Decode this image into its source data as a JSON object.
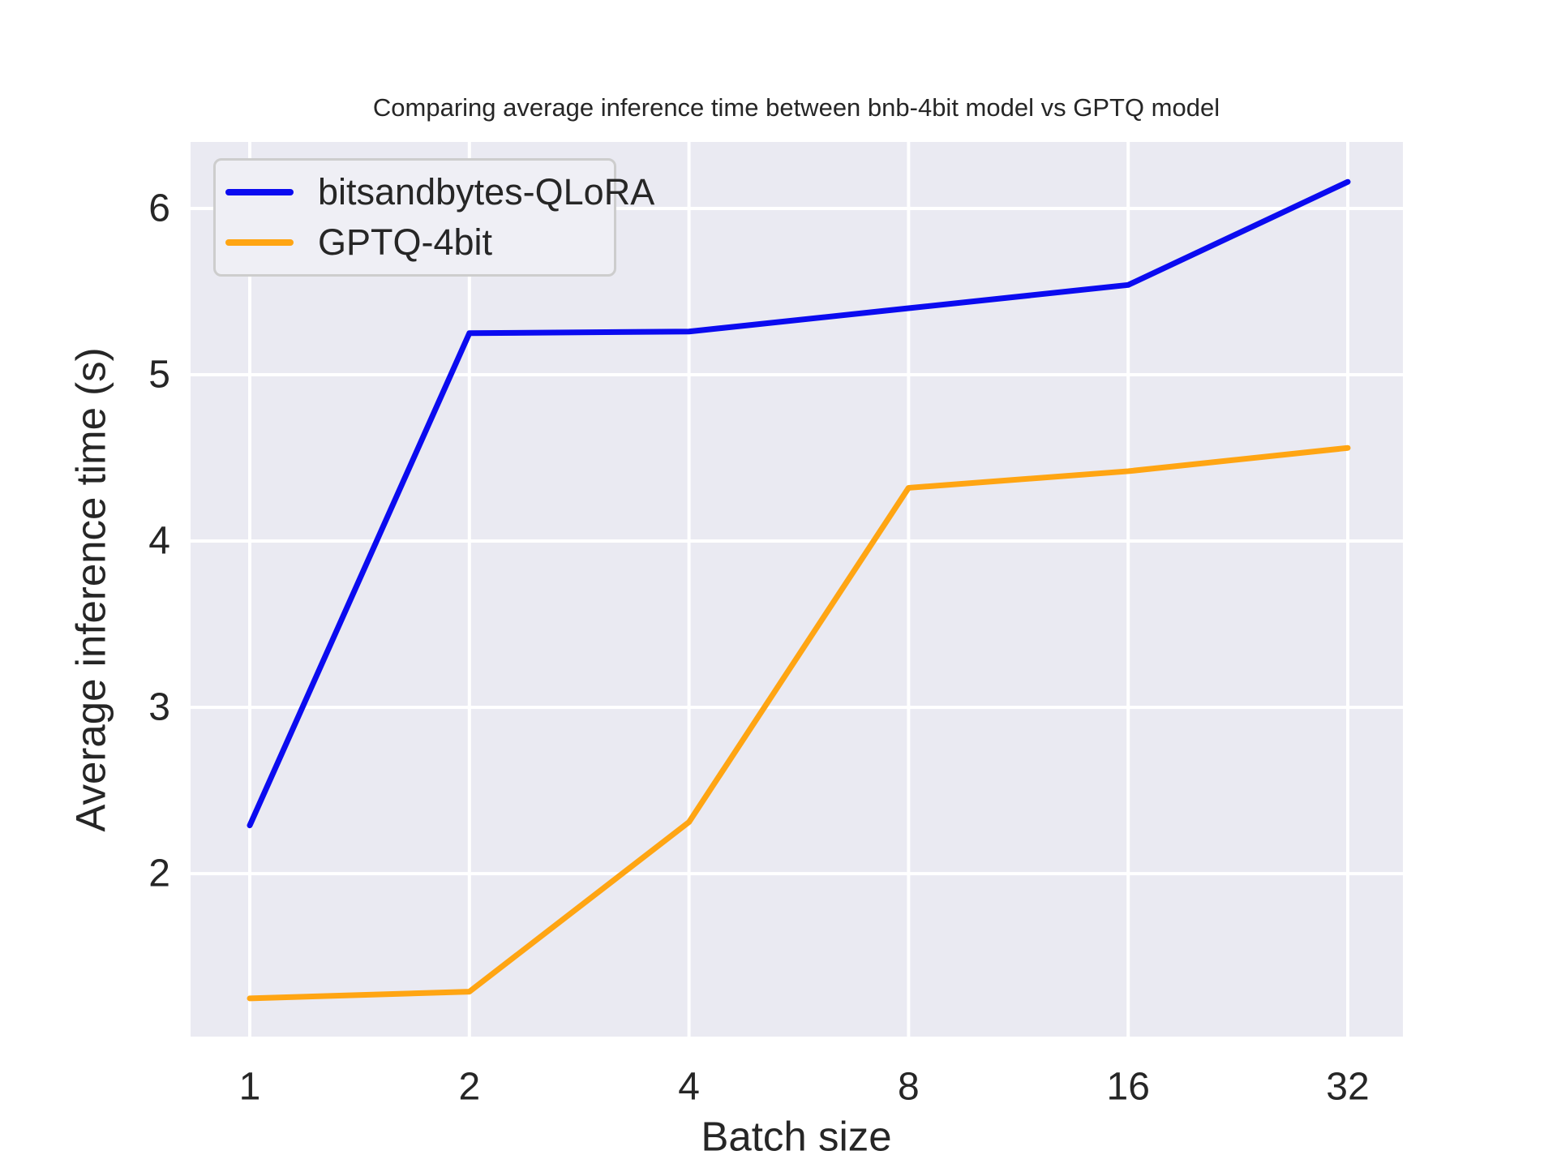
{
  "title": "Comparing average inference time between bnb-4bit model vs GPTQ model",
  "xlabel": "Batch size",
  "ylabel": "Average inference time (s)",
  "legend": {
    "position": "upper left",
    "items": [
      {
        "label": "bitsandbytes-QLoRA",
        "color": "#0b0bf0"
      },
      {
        "label": "GPTQ-4bit",
        "color": "#ffa513"
      }
    ]
  },
  "chart_data": {
    "type": "line",
    "title": "Comparing average inference time between bnb-4bit model vs GPTQ model",
    "xlabel": "Batch size",
    "ylabel": "Average inference time (s)",
    "x_scale": "log2 (equal spacing per doubling)",
    "categories": [
      1,
      2,
      4,
      8,
      16,
      32
    ],
    "x_tick_labels": [
      "1",
      "2",
      "4",
      "8",
      "16",
      "32"
    ],
    "series": [
      {
        "name": "bitsandbytes-QLoRA",
        "color": "#0b0bf0",
        "values": [
          2.29,
          5.25,
          5.26,
          5.4,
          5.54,
          6.16
        ]
      },
      {
        "name": "GPTQ-4bit",
        "color": "#ffa513",
        "values": [
          1.25,
          1.29,
          2.31,
          4.32,
          4.42,
          4.56
        ]
      }
    ],
    "y_ticks": [
      2,
      3,
      4,
      5,
      6
    ],
    "ylim": [
      1.02,
      6.4
    ],
    "grid": true,
    "grid_color": "#ffffff",
    "plot_bg_color": "#eaeaf2",
    "text_color": "#262626",
    "legend_position": "upper left"
  }
}
